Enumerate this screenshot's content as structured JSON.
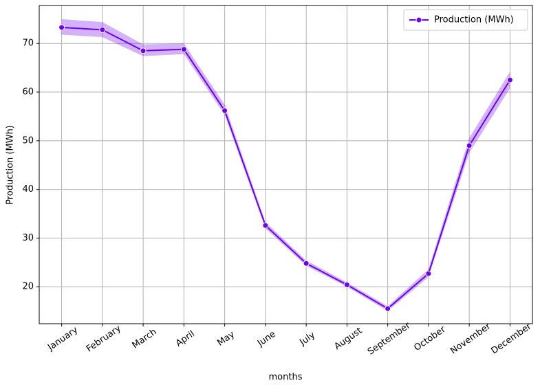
{
  "chart_data": {
    "type": "line",
    "xlabel": "months",
    "ylabel": "Production (MWh)",
    "categories": [
      "January",
      "February",
      "March",
      "April",
      "May",
      "June",
      "July",
      "August",
      "September",
      "October",
      "November",
      "December"
    ],
    "series": [
      {
        "name": "Production (MWh)",
        "color": "#6c00f0",
        "values": [
          73.3,
          72.8,
          68.5,
          68.8,
          56.2,
          32.6,
          24.8,
          20.4,
          15.5,
          22.7,
          49.0,
          62.5
        ],
        "lower": [
          71.8,
          71.3,
          67.4,
          67.8,
          55.3,
          32.0,
          24.3,
          20.0,
          15.0,
          22.0,
          47.5,
          60.8
        ],
        "upper": [
          75.0,
          74.4,
          69.8,
          70.0,
          57.4,
          33.3,
          25.4,
          20.9,
          16.0,
          23.6,
          50.6,
          64.2
        ]
      }
    ],
    "ylim": [
      12.4,
      77.8
    ],
    "yticks": [
      20,
      30,
      40,
      50,
      60,
      70
    ],
    "grid": true,
    "legend": "upper right"
  }
}
